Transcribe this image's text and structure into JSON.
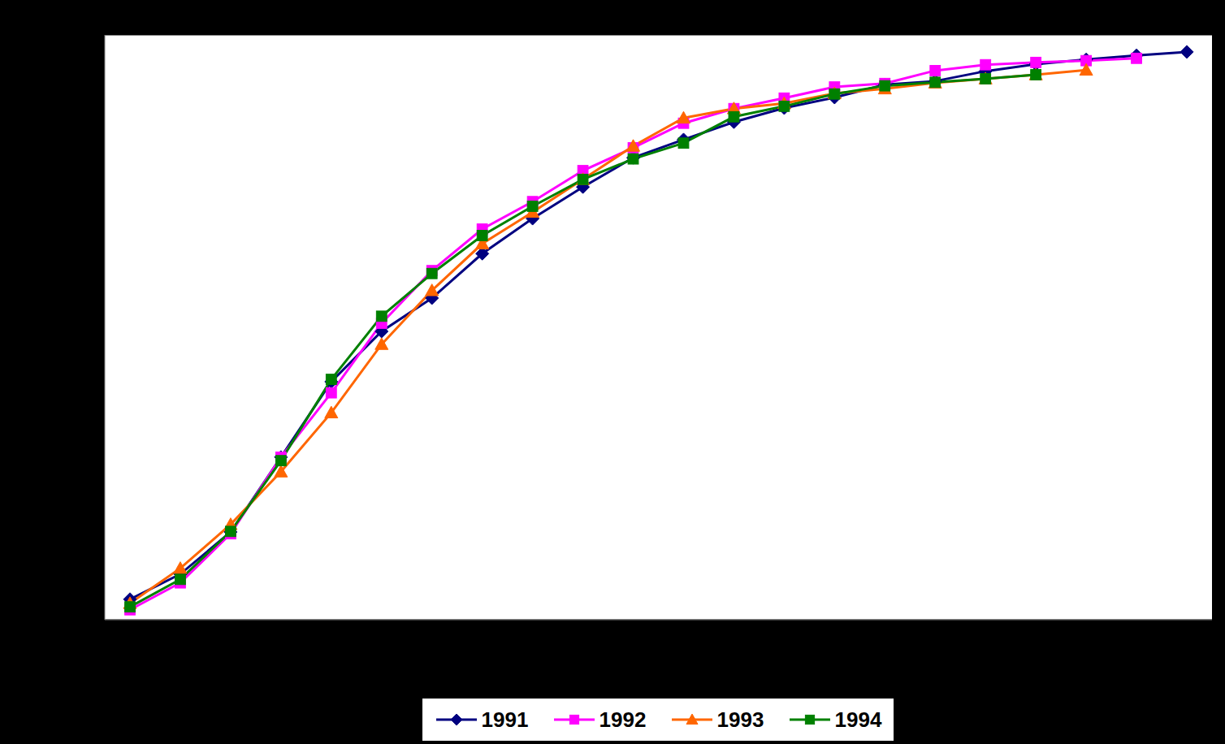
{
  "chart_data": {
    "type": "line",
    "categories": [
      null,
      null,
      null,
      null,
      null,
      null,
      null,
      null,
      null,
      null,
      null,
      null,
      null,
      null,
      null,
      null,
      null,
      null,
      null,
      null,
      null,
      null
    ],
    "series": [
      {
        "name": "1991",
        "color": "#000080",
        "marker": "diamond",
        "values": [
          3.5,
          7.8,
          15.0,
          27.8,
          40.7,
          49.3,
          55.0,
          62.6,
          68.6,
          74.0,
          79.0,
          82.1,
          85.1,
          87.5,
          89.3,
          91.5,
          92.1,
          93.8,
          95.0,
          95.8,
          96.5,
          97.1
        ]
      },
      {
        "name": "1992",
        "color": "#ff00ff",
        "marker": "square",
        "values": [
          1.7,
          6.3,
          14.7,
          27.8,
          38.8,
          50.7,
          59.7,
          66.8,
          71.5,
          76.8,
          80.7,
          84.9,
          87.4,
          89.2,
          91.1,
          91.7,
          93.9,
          94.9,
          95.3,
          95.6,
          96.0,
          null
        ]
      },
      {
        "name": "1993",
        "color": "#ff6600",
        "marker": "triangle",
        "values": [
          2.8,
          8.8,
          16.3,
          25.3,
          35.4,
          47.1,
          56.3,
          64.3,
          69.7,
          75.3,
          81.0,
          85.8,
          87.4,
          88.3,
          90.0,
          90.8,
          91.8,
          92.5,
          93.2,
          94.0,
          null,
          null
        ]
      },
      {
        "name": "1994",
        "color": "#008000",
        "marker": "square",
        "values": [
          2.2,
          6.9,
          15.1,
          27.2,
          41.1,
          51.9,
          59.2,
          65.7,
          70.7,
          75.3,
          78.8,
          81.5,
          86.0,
          87.8,
          89.9,
          91.3,
          91.9,
          92.5,
          93.2,
          null,
          null,
          null
        ]
      }
    ],
    "ylim": [
      0,
      100
    ],
    "yticks": [
      0,
      10,
      20,
      30,
      40,
      50,
      60,
      70,
      80,
      90,
      100
    ],
    "grid": true,
    "legend": "bottom",
    "tick_labels": false
  }
}
